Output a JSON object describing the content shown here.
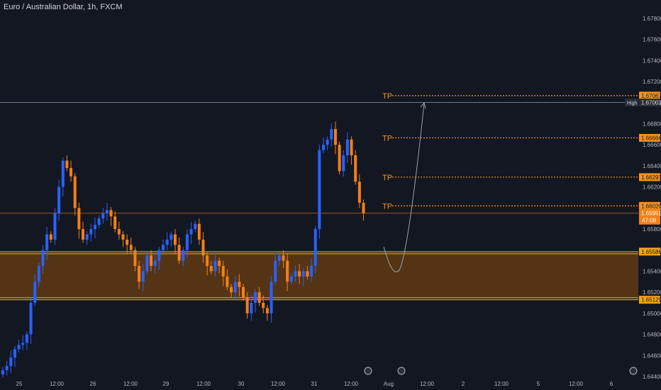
{
  "title": "Euro / Australian Dollar, 1h, FXCM",
  "colors": {
    "background": "#131722",
    "bull": "#2962ff",
    "bear": "#f57f17",
    "zone_fill": "#6b3f12",
    "zone_line": "#f7a21b",
    "tp": "#f7931a",
    "high_line": "#707a8a",
    "price_line": "#f57f17",
    "axis_text": "#b2b5be"
  },
  "axis": {
    "y_ticks": [
      "1.67800",
      "1.67600",
      "1.67400",
      "1.67200",
      "1.67000",
      "1.66800",
      "1.66600",
      "1.66400",
      "1.66200",
      "1.66000",
      "1.65800",
      "1.65600",
      "1.65400",
      "1.65200",
      "1.65000",
      "1.64800",
      "1.64600",
      "1.64400"
    ],
    "x_ticks": [
      "25",
      "12:00",
      "26",
      "12:00",
      "29",
      "12:00",
      "30",
      "12:00",
      "31",
      "12:00",
      "Aug",
      "12:00",
      "2",
      "12:00",
      "5",
      "12:00",
      "6"
    ]
  },
  "price_labels": {
    "tp1": "1.67067",
    "high_tag": "High",
    "high": "1.67002",
    "tp2": "1.66666",
    "tp3": "1.66293",
    "tp4": "1.66020",
    "current": "1.65951",
    "countdown": "47:08",
    "zone_top": "1.65586",
    "zone_bottom": "1.65129"
  },
  "tp_label": "TP",
  "chart_data": {
    "type": "candlestick",
    "title": "Euro / Australian Dollar, 1h, FXCM",
    "ylim": [
      1.6436,
      1.68
    ],
    "zone": [
      1.65129,
      1.65586
    ],
    "high": 1.67002,
    "take_profit_levels": [
      1.67067,
      1.66666,
      1.66293,
      1.6602
    ],
    "last_price": 1.65951,
    "close_series": [
      1.6446,
      1.645,
      1.6458,
      1.6466,
      1.647,
      1.6472,
      1.648,
      1.651,
      1.653,
      1.6545,
      1.656,
      1.6575,
      1.657,
      1.6595,
      1.662,
      1.6645,
      1.6638,
      1.663,
      1.66,
      1.658,
      1.657,
      1.6575,
      1.658,
      1.6584,
      1.659,
      1.6595,
      1.6598,
      1.6592,
      1.658,
      1.6575,
      1.657,
      1.6565,
      1.656,
      1.6545,
      1.653,
      1.654,
      1.6555,
      1.6545,
      1.655,
      1.656,
      1.6565,
      1.657,
      1.6575,
      1.6565,
      1.655,
      1.656,
      1.6575,
      1.658,
      1.6585,
      1.657,
      1.6555,
      1.6545,
      1.654,
      1.655,
      1.6545,
      1.6535,
      1.6525,
      1.652,
      1.653,
      1.6525,
      1.6515,
      1.65,
      1.651,
      1.652,
      1.651,
      1.6505,
      1.65,
      1.653,
      1.655,
      1.6555,
      1.655,
      1.653,
      1.6535,
      1.654,
      1.6535,
      1.654,
      1.6535,
      1.6545,
      1.658,
      1.6655,
      1.666,
      1.6665,
      1.6675,
      1.666,
      1.6635,
      1.665,
      1.6665,
      1.665,
      1.6625,
      1.6605,
      1.6595
    ]
  }
}
